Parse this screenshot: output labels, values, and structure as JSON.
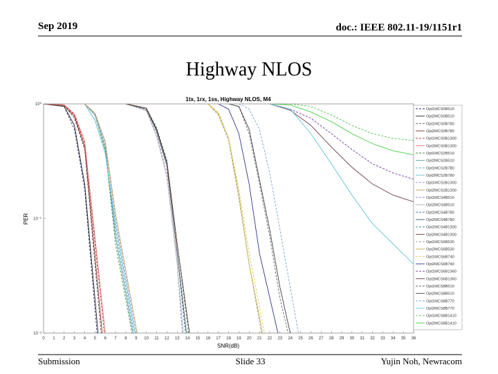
{
  "header": {
    "date": "Sep 2019",
    "doc": "doc.: IEEE 802.11-19/1151r1"
  },
  "slide_title": "Highway NLOS",
  "footer": {
    "left": "Submission",
    "center": "Slide 33",
    "right": "Yujin Noh, Newracom"
  },
  "chart_data": {
    "type": "line",
    "title": "1tx, 1rx, 1ss, Highway NLOS, M4",
    "xlabel": "SNR(dB)",
    "ylabel": "PER",
    "log_y": true,
    "legend": "right",
    "xlim": [
      0,
      36
    ],
    "xticks": [
      0,
      1,
      2,
      3,
      4,
      5,
      6,
      7,
      8,
      9,
      10,
      11,
      12,
      13,
      14,
      15,
      16,
      17,
      18,
      19,
      20,
      21,
      22,
      23,
      24,
      25,
      26,
      27,
      28,
      29,
      30,
      31,
      32,
      33,
      34,
      35,
      36
    ],
    "ylim": [
      0.01,
      1
    ],
    "yticks": [
      {
        "value": 1,
        "label": "10⁰"
      },
      {
        "value": 0.1,
        "label": "10⁻¹"
      },
      {
        "value": 0.01,
        "label": "10⁻²"
      }
    ],
    "series": [
      {
        "name": "Opt1MCS0B510",
        "color": "#2a2a8a",
        "dashed": true,
        "x": [
          0,
          2,
          3,
          4,
          5.2
        ],
        "values": [
          1,
          0.95,
          0.6,
          0.18,
          0.01
        ]
      },
      {
        "name": "Opt2MCS0B510",
        "color": "#222222",
        "dashed": false,
        "x": [
          0,
          2,
          3,
          4,
          5.3
        ],
        "values": [
          1,
          0.95,
          0.65,
          0.2,
          0.01
        ]
      },
      {
        "name": "Opt1MCS0B780",
        "color": "#555555",
        "dashed": true,
        "x": [
          0,
          2,
          3,
          4,
          5.6
        ],
        "values": [
          1,
          0.97,
          0.75,
          0.4,
          0.01
        ]
      },
      {
        "name": "Opt2MCS0B780",
        "color": "#8b2c2c",
        "dashed": false,
        "x": [
          0,
          2,
          3,
          4,
          5.7
        ],
        "values": [
          1,
          0.97,
          0.78,
          0.42,
          0.01
        ]
      },
      {
        "name": "Opt1MCS0B1300",
        "color": "#c03030",
        "dashed": true,
        "x": [
          0,
          2,
          3,
          4,
          5.9
        ],
        "values": [
          1,
          0.98,
          0.8,
          0.45,
          0.01
        ]
      },
      {
        "name": "Opt2MCS0B1300",
        "color": "#e07070",
        "dashed": false,
        "x": [
          0,
          2,
          3,
          4,
          6
        ],
        "values": [
          1,
          0.98,
          0.82,
          0.47,
          0.01
        ]
      },
      {
        "name": "Opt1MCS2B510",
        "color": "#3a8f3a",
        "dashed": true,
        "x": [
          4,
          5,
          6,
          7,
          8.6
        ],
        "values": [
          1,
          0.8,
          0.4,
          0.06,
          0.01
        ]
      },
      {
        "name": "Opt2MCS2B510",
        "color": "#5a9a9a",
        "dashed": false,
        "x": [
          4,
          5,
          6,
          7,
          8.7
        ],
        "values": [
          1,
          0.8,
          0.42,
          0.07,
          0.01
        ]
      },
      {
        "name": "Opt1MCS2B780",
        "color": "#40a0c0",
        "dashed": true,
        "x": [
          4,
          5,
          6,
          7,
          8.8
        ],
        "values": [
          1,
          0.72,
          0.38,
          0.08,
          0.01
        ]
      },
      {
        "name": "Opt2MCS2B780",
        "color": "#60c0e0",
        "dashed": false,
        "x": [
          4,
          5,
          6,
          7,
          8.9
        ],
        "values": [
          1,
          0.72,
          0.37,
          0.09,
          0.01
        ]
      },
      {
        "name": "Opt1MCS2B1300",
        "color": "#9090d0",
        "dashed": true,
        "x": [
          4,
          5,
          6,
          7,
          9
        ],
        "values": [
          1,
          0.82,
          0.45,
          0.1,
          0.01
        ]
      },
      {
        "name": "Opt2MCS2B1300",
        "color": "#c0a060",
        "dashed": false,
        "x": [
          4,
          5,
          6,
          7,
          9.1
        ],
        "values": [
          1,
          0.83,
          0.47,
          0.11,
          0.01
        ]
      },
      {
        "name": "Opt1MCS4B510",
        "color": "#8888cc",
        "dashed": true,
        "x": [
          8,
          10,
          11,
          12,
          13,
          13.5
        ],
        "values": [
          1,
          0.88,
          0.55,
          0.25,
          0.04,
          0.01
        ]
      },
      {
        "name": "Opt2MCS4B510",
        "color": "#b0b0b0",
        "dashed": false,
        "x": [
          8,
          10,
          11,
          12,
          13,
          13.6
        ],
        "values": [
          1,
          0.87,
          0.52,
          0.23,
          0.04,
          0.01
        ]
      },
      {
        "name": "Opt1MCS4B780",
        "color": "#3070a0",
        "dashed": true,
        "x": [
          8,
          10,
          11,
          12,
          13,
          13.8
        ],
        "values": [
          1,
          0.9,
          0.6,
          0.3,
          0.05,
          0.01
        ]
      },
      {
        "name": "Opt2MCS4B780",
        "color": "#405060",
        "dashed": false,
        "x": [
          8,
          10,
          11,
          12,
          13,
          13.9
        ],
        "values": [
          1,
          0.9,
          0.58,
          0.29,
          0.05,
          0.01
        ]
      },
      {
        "name": "Opt1MCS4B1300",
        "color": "#208080",
        "dashed": true,
        "x": [
          8,
          10,
          11,
          12,
          13,
          14.1
        ],
        "values": [
          1,
          0.92,
          0.62,
          0.32,
          0.06,
          0.01
        ]
      },
      {
        "name": "Opt2MCS4B1300",
        "color": "#6a3a2a",
        "dashed": false,
        "x": [
          8,
          10,
          11,
          12,
          13,
          14.2
        ],
        "values": [
          1,
          0.92,
          0.6,
          0.31,
          0.06,
          0.01
        ]
      },
      {
        "name": "Opt1MCS6B530",
        "color": "#a0a0a0",
        "dashed": true,
        "x": [
          16,
          17,
          18,
          19,
          20,
          21.2
        ],
        "values": [
          1,
          0.8,
          0.48,
          0.15,
          0.04,
          0.01
        ]
      },
      {
        "name": "Opt2MCS6B530",
        "color": "#c0b040",
        "dashed": false,
        "x": [
          16,
          17,
          18,
          19,
          20,
          21.3
        ],
        "values": [
          1,
          0.82,
          0.5,
          0.16,
          0.04,
          0.01
        ]
      },
      {
        "name": "Opt1MCS6B740",
        "color": "#e0c040",
        "dashed": true,
        "x": [
          16,
          17,
          18,
          19,
          20,
          21.5
        ],
        "values": [
          1,
          0.85,
          0.5,
          0.18,
          0.05,
          0.01
        ]
      },
      {
        "name": "Opt2MCS6B740",
        "color": "#303090",
        "dashed": false,
        "x": [
          17,
          18,
          19,
          20,
          21,
          22.8
        ],
        "values": [
          1,
          0.9,
          0.55,
          0.2,
          0.05,
          0.01
        ]
      },
      {
        "name": "Opt1MCS6B1360",
        "color": "#7030a0",
        "dashed": true,
        "x": [
          22,
          24,
          26,
          28,
          30,
          32,
          34,
          36
        ],
        "values": [
          1,
          0.9,
          0.75,
          0.55,
          0.4,
          0.3,
          0.25,
          0.22
        ]
      },
      {
        "name": "Opt2MCS6B1360",
        "color": "#6a3a4a",
        "dashed": false,
        "x": [
          22,
          24,
          26,
          28,
          30,
          32,
          34,
          36
        ],
        "values": [
          1,
          0.88,
          0.65,
          0.42,
          0.28,
          0.2,
          0.16,
          0.14
        ]
      },
      {
        "name": "Opt1MCS8B510",
        "color": "#606060",
        "dashed": true,
        "x": [
          18,
          19,
          20,
          21,
          22,
          23,
          23.8
        ],
        "values": [
          1,
          0.95,
          0.55,
          0.2,
          0.07,
          0.02,
          0.01
        ]
      },
      {
        "name": "Opt2MCS8B510",
        "color": "#404040",
        "dashed": false,
        "x": [
          18,
          19,
          20,
          21,
          22,
          23,
          24
        ],
        "values": [
          1,
          0.95,
          0.6,
          0.22,
          0.08,
          0.025,
          0.01
        ]
      },
      {
        "name": "Opt1MCS8B770",
        "color": "#70a0d0",
        "dashed": true,
        "x": [
          19,
          20,
          21,
          22,
          23,
          24,
          24.8
        ],
        "values": [
          1,
          0.9,
          0.6,
          0.25,
          0.08,
          0.025,
          0.01
        ]
      },
      {
        "name": "Opt2MCS8B770",
        "color": "#60c0e0",
        "dashed": false,
        "x": [
          22,
          24,
          26,
          28,
          30,
          32,
          34,
          36
        ],
        "values": [
          1,
          0.9,
          0.55,
          0.3,
          0.16,
          0.09,
          0.06,
          0.04
        ]
      },
      {
        "name": "Opt1MCS8B1410",
        "color": "#50c050",
        "dashed": true,
        "x": [
          22,
          24,
          26,
          28,
          30,
          32,
          34,
          36
        ],
        "values": [
          1,
          1,
          0.95,
          0.8,
          0.65,
          0.55,
          0.5,
          0.48
        ]
      },
      {
        "name": "Opt2MCS8B1410",
        "color": "#40d040",
        "dashed": false,
        "x": [
          22,
          24,
          26,
          28,
          30,
          32,
          34,
          36
        ],
        "values": [
          1,
          0.98,
          0.85,
          0.7,
          0.55,
          0.45,
          0.39,
          0.36
        ]
      }
    ]
  }
}
